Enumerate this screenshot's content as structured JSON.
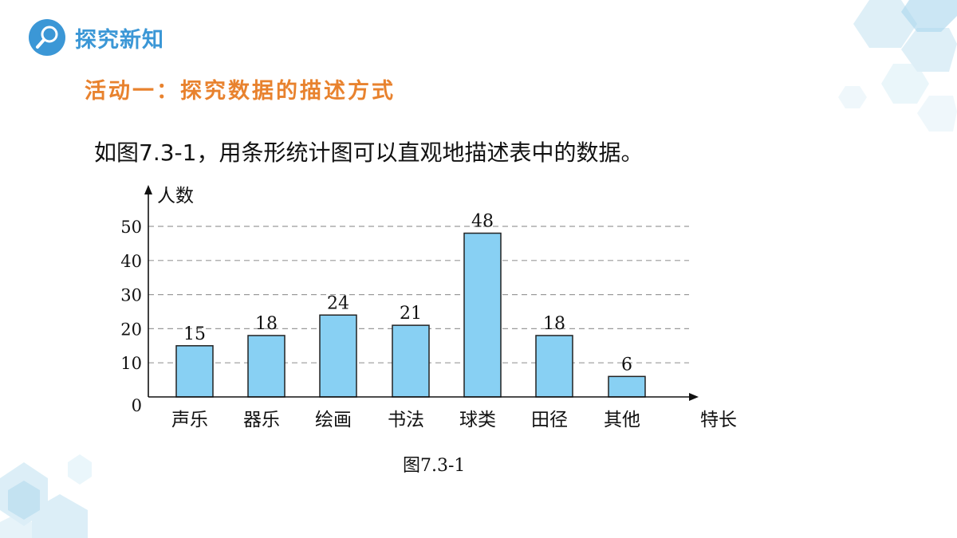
{
  "header": {
    "section_title": "探究新知",
    "icon": "magnifier-icon"
  },
  "activity_title": "活动一：探究数据的描述方式",
  "intro_text": "如图7.3-1，用条形统计图可以直观地描述表中的数据。",
  "caption": "图7.3-1",
  "colors": {
    "bar_fill": "#88d0f3",
    "bar_stroke": "#222222",
    "grid": "#9a9a9a",
    "accent_blue": "#3b97d6",
    "accent_orange": "#e8822e"
  },
  "chart_data": {
    "type": "bar",
    "categories": [
      "声乐",
      "器乐",
      "绘画",
      "书法",
      "球类",
      "田径",
      "其他"
    ],
    "values": [
      15,
      18,
      24,
      21,
      48,
      18,
      6
    ],
    "data_labels": [
      "15",
      "18",
      "24",
      "21",
      "48",
      "18",
      "6"
    ],
    "title": "",
    "xlabel": "特长",
    "ylabel": "人数",
    "ylim": [
      0,
      50
    ],
    "yticks": [
      0,
      10,
      20,
      30,
      40,
      50
    ],
    "ytick_labels": [
      "0",
      "10",
      "20",
      "30",
      "40",
      "50"
    ],
    "grid": "dashed-horizontal",
    "legend": "none"
  }
}
